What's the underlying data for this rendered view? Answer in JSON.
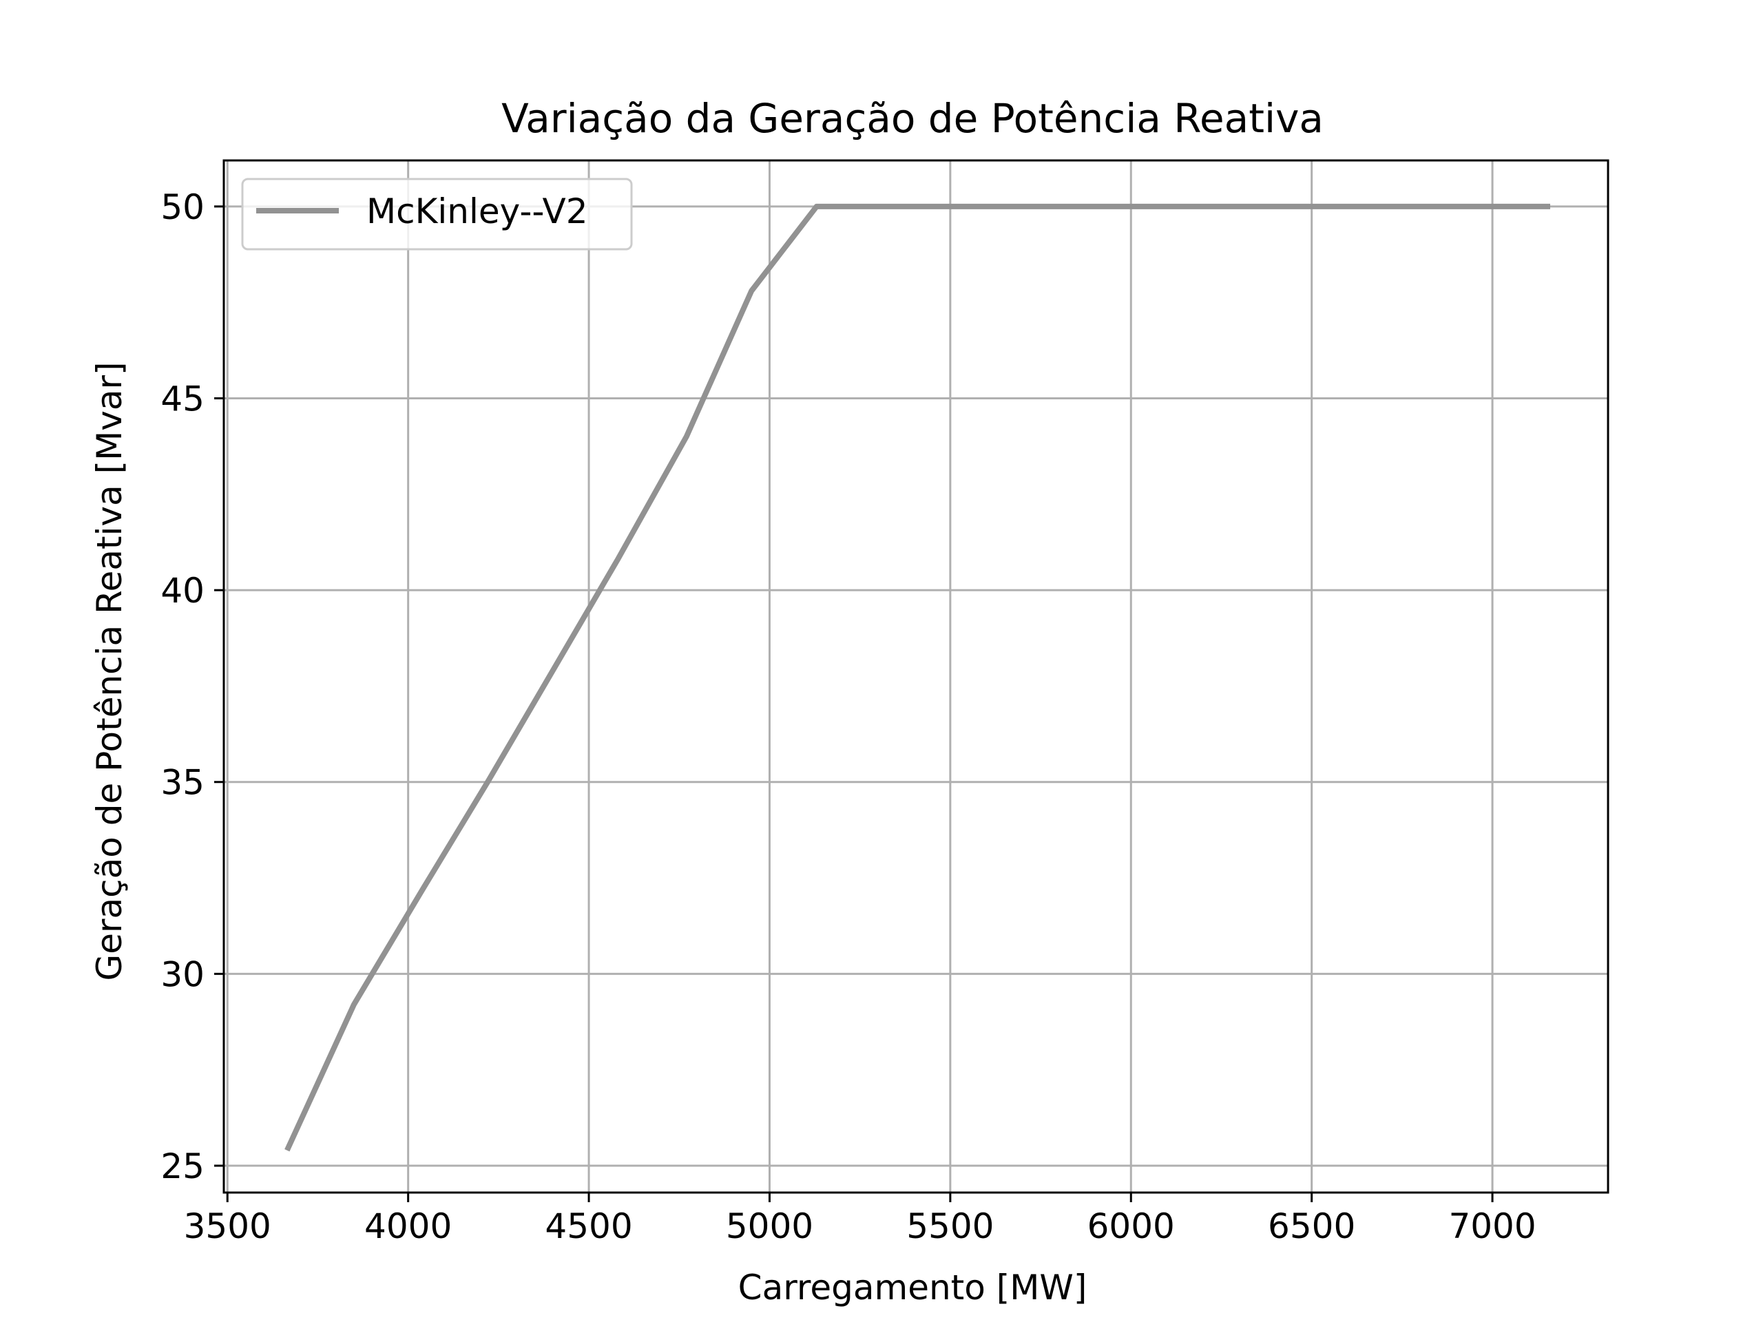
{
  "chart_data": {
    "type": "line",
    "title": "Variação da Geração de Potência Reativa",
    "xlabel": "Carregamento [MW]",
    "ylabel": "Geração de Potência Reativa [Mvar]",
    "xlim": [
      3490,
      7320
    ],
    "ylim": [
      24.3,
      51.2
    ],
    "xticks": [
      3500,
      4000,
      4500,
      5000,
      5500,
      6000,
      6500,
      7000
    ],
    "yticks": [
      25,
      30,
      35,
      40,
      45,
      50
    ],
    "xtick_labels": [
      "3500",
      "4000",
      "4500",
      "5000",
      "5500",
      "6000",
      "6500",
      "7000"
    ],
    "ytick_labels": [
      "25",
      "30",
      "35",
      "40",
      "45",
      "50"
    ],
    "grid": true,
    "legend_position": "top-left",
    "series": [
      {
        "name": "McKinley--V2",
        "color": "#929292",
        "x": [
          3665,
          3850,
          4040,
          4220,
          4400,
          4580,
          4770,
          4950,
          5130,
          5500,
          6000,
          6500,
          7000,
          7160
        ],
        "y": [
          25.4,
          29.2,
          32.2,
          35.0,
          37.9,
          40.8,
          44.0,
          47.8,
          50.0,
          50.0,
          50.0,
          50.0,
          50.0,
          50.0
        ]
      }
    ]
  }
}
